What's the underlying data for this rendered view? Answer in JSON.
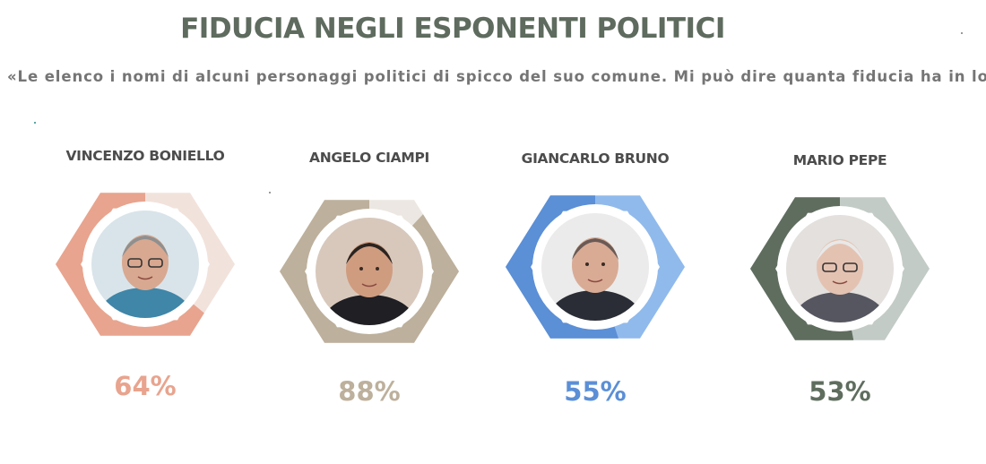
{
  "title": "FIDUCIA NEGLI ESPONENTI POLITICI",
  "subtitle": "«Le elenco i nomi di alcuni personaggi politici di spicco del suo comune. Mi può dire quanta fiducia ha in loro?",
  "chart_data": {
    "type": "pie",
    "series": [
      {
        "name": "VINCENZO BONIELLO",
        "value": 64,
        "label": "64%",
        "color": "#e8a48e",
        "track": "#f2e2dc"
      },
      {
        "name": "ANGELO CIAMPI",
        "value": 88,
        "label": "88%",
        "color": "#bdb09c",
        "track": "#ece7e2"
      },
      {
        "name": "GIANCARLO BRUNO",
        "value": 55,
        "label": "55%",
        "color": "#5b8fd6",
        "track": "#90baec"
      },
      {
        "name": "MARIO PEPE",
        "value": 53,
        "label": "53%",
        "color": "#5f6d5f",
        "track": "#c2cbc5"
      }
    ],
    "unit": "%",
    "max": 100
  }
}
